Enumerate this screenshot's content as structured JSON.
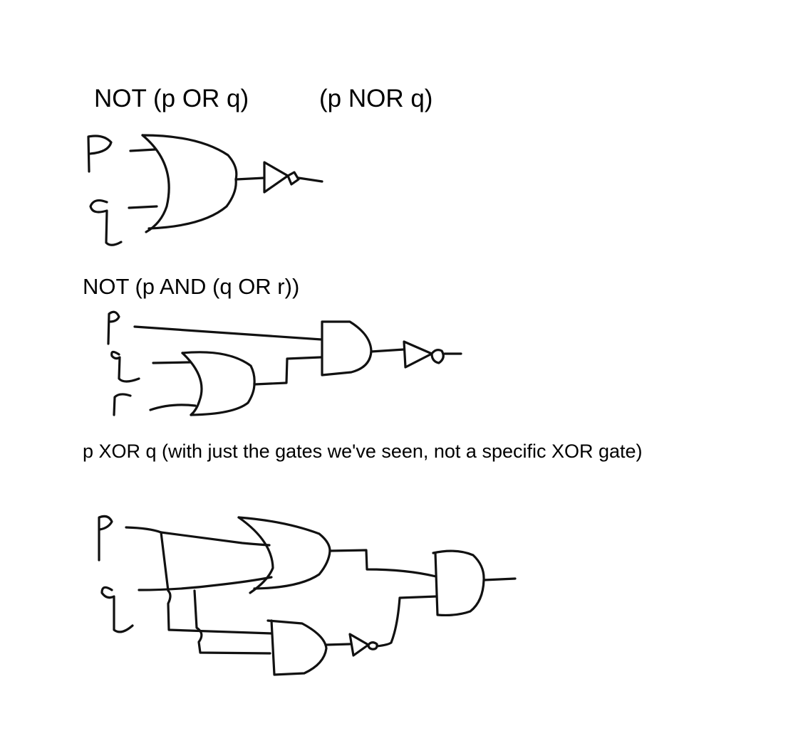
{
  "headings": {
    "nor_expression": "NOT (p OR q)",
    "nor_equivalent": "(p NOR q)",
    "nand_or_expression": "NOT (p AND (q OR r))",
    "xor_expression": "p XOR q (with just the gates we've seen, not a specific XOR gate)"
  },
  "variables": [
    "p",
    "q",
    "r"
  ],
  "ink_color": "#111111",
  "background_color": "#ffffff"
}
